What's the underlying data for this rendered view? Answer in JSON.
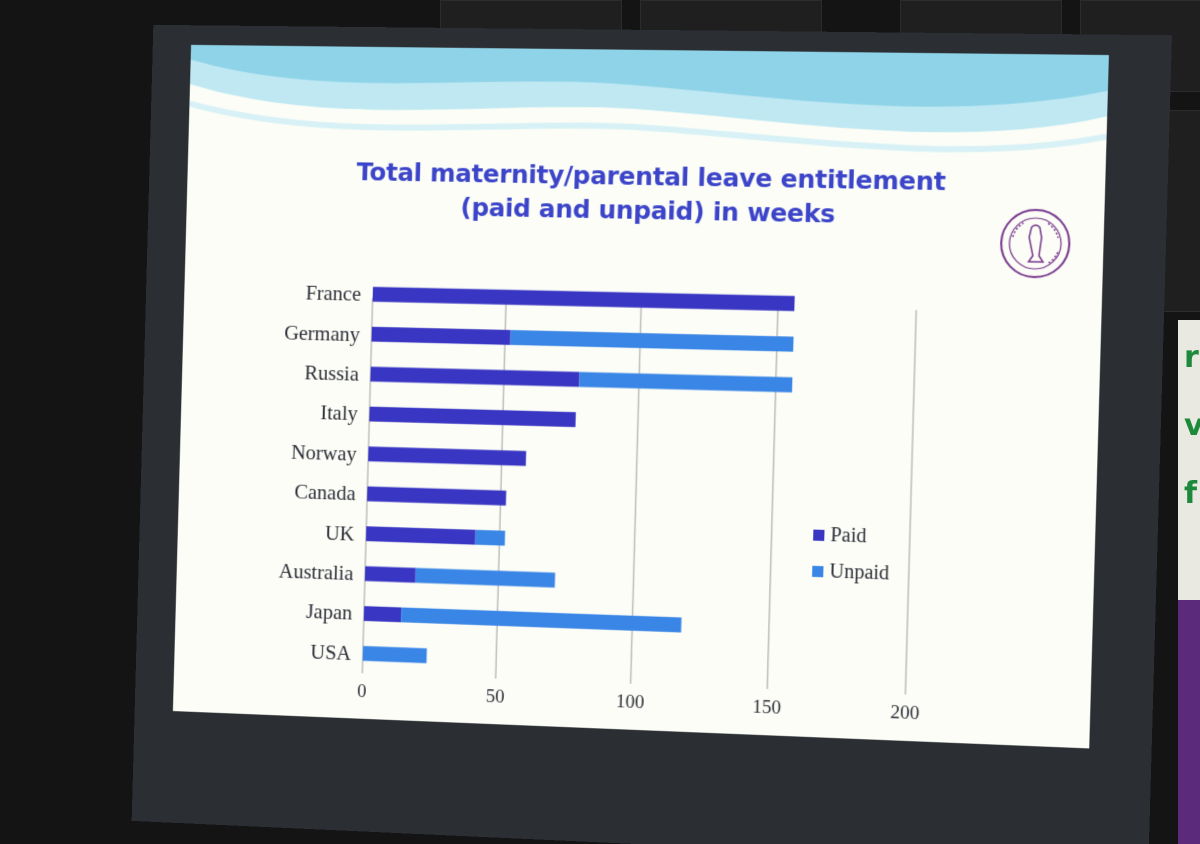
{
  "slide": {
    "title_line1": "Total maternity/parental leave entitlement",
    "title_line2": "(paid and unpaid) in weeks"
  },
  "colors": {
    "paid": "#3a36c4",
    "unpaid": "#3a86e6",
    "title": "#3c44c9",
    "grid": "#b9b9b9"
  },
  "chart_data": {
    "type": "bar",
    "orientation": "horizontal",
    "stacked": true,
    "categories": [
      "France",
      "Germany",
      "Russia",
      "Italy",
      "Norway",
      "Canada",
      "UK",
      "Australia",
      "Japan",
      "USA"
    ],
    "series": [
      {
        "name": "Paid",
        "values": [
          156,
          52,
          78,
          77,
          59,
          52,
          41,
          19,
          14,
          0
        ]
      },
      {
        "name": "Unpaid",
        "values": [
          0,
          104,
          78,
          0,
          0,
          0,
          11,
          52,
          104,
          24
        ]
      }
    ],
    "xlim": [
      0,
      200
    ],
    "xticks": [
      "0",
      "50",
      "100",
      "150",
      "200"
    ],
    "xlabel": "",
    "ylabel": "",
    "grid": true,
    "legend_position": "right"
  }
}
